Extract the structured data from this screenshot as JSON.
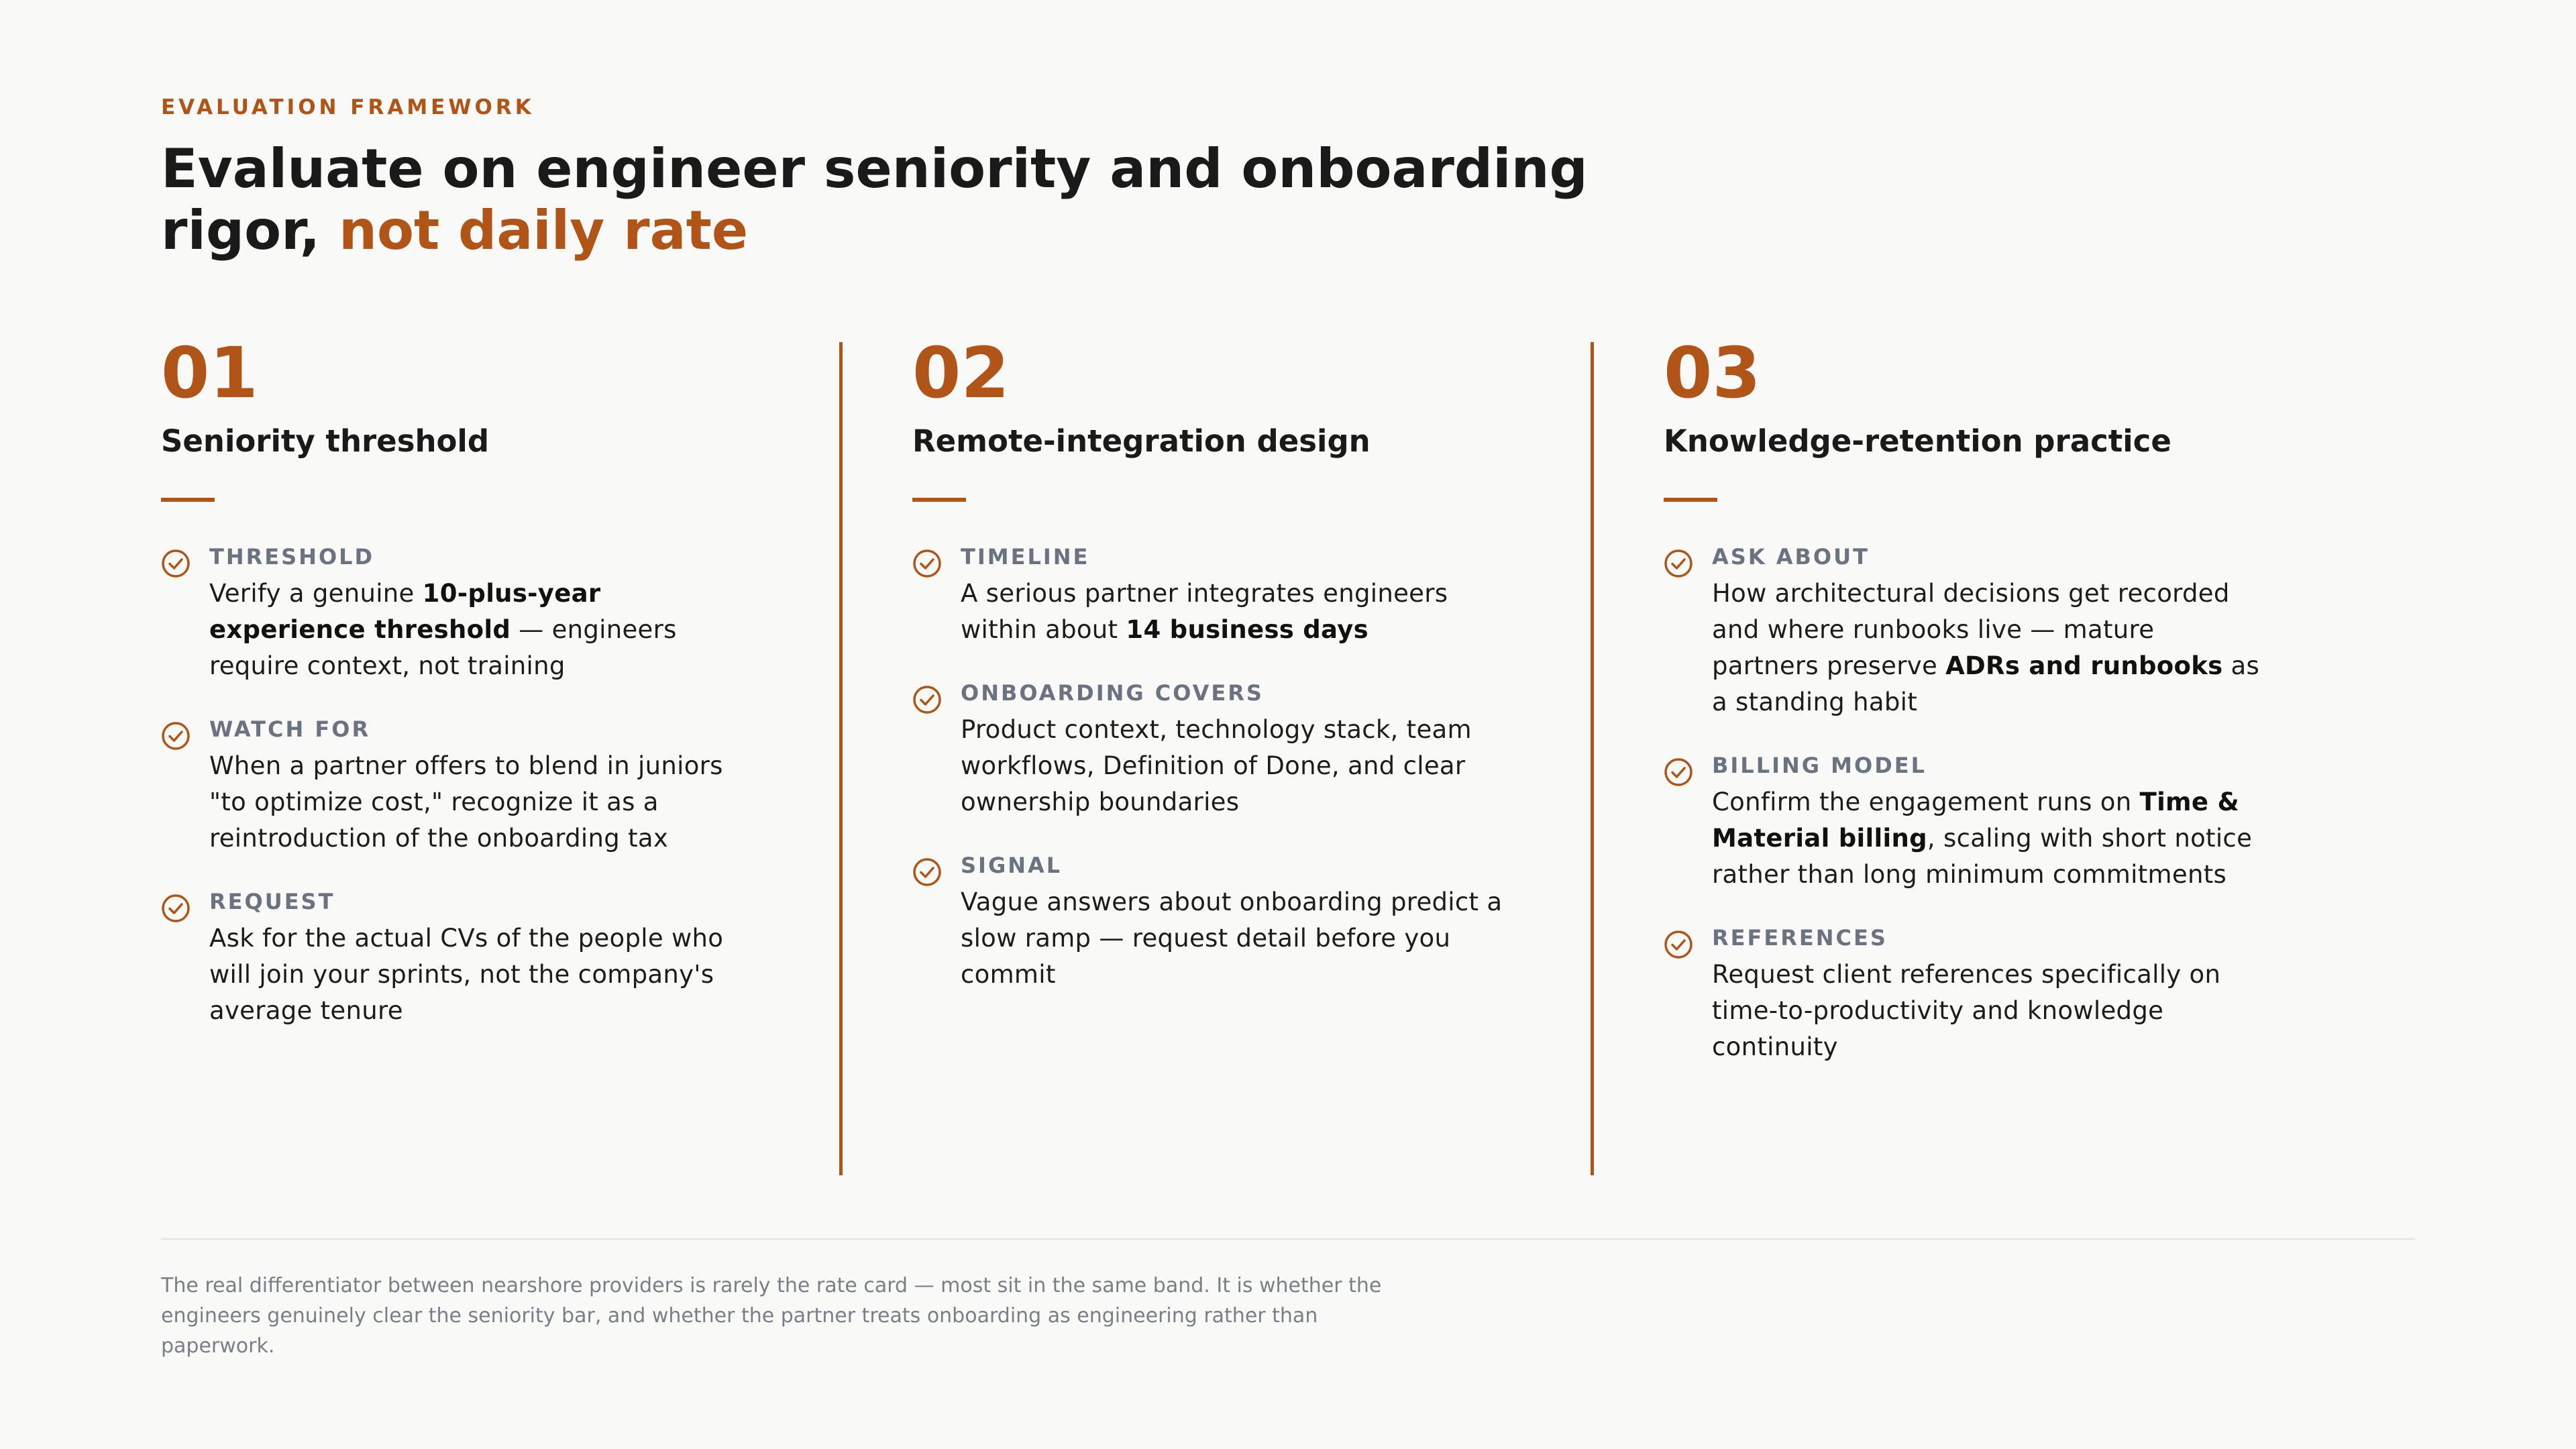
{
  "eyebrow": "EVALUATION FRAMEWORK",
  "title": {
    "main": "Evaluate on engineer seniority and onboarding rigor,",
    "accent": "not daily rate"
  },
  "accent_color": "#b05418",
  "check_icon": "check-circle-icon",
  "columns": [
    {
      "number": "01",
      "title": "Seniority threshold",
      "items": [
        {
          "label": "THRESHOLD",
          "parts": [
            {
              "t": "Verify a genuine "
            },
            {
              "t": "10-plus-year experience threshold",
              "b": true
            },
            {
              "t": " — engineers require context, not training"
            }
          ]
        },
        {
          "label": "WATCH FOR",
          "parts": [
            {
              "t": "When a partner offers to blend in juniors \"to optimize cost,\" recognize it as a reintroduction of the onboarding tax"
            }
          ]
        },
        {
          "label": "REQUEST",
          "parts": [
            {
              "t": "Ask for the actual CVs of the people who will join your sprints, not the company's average tenure"
            }
          ]
        }
      ]
    },
    {
      "number": "02",
      "title": "Remote-integration design",
      "items": [
        {
          "label": "TIMELINE",
          "parts": [
            {
              "t": "A serious partner integrates engineers within about "
            },
            {
              "t": "14 business days",
              "b": true
            }
          ]
        },
        {
          "label": "ONBOARDING COVERS",
          "parts": [
            {
              "t": "Product context, technology stack, team workflows, Definition of Done, and clear ownership boundaries"
            }
          ]
        },
        {
          "label": "SIGNAL",
          "parts": [
            {
              "t": "Vague answers about onboarding predict a slow ramp — request detail before you commit"
            }
          ]
        }
      ]
    },
    {
      "number": "03",
      "title": "Knowledge-retention practice",
      "items": [
        {
          "label": "ASK ABOUT",
          "parts": [
            {
              "t": "How architectural decisions get recorded and where runbooks live — mature partners preserve "
            },
            {
              "t": "ADRs and runbooks",
              "b": true
            },
            {
              "t": " as a standing habit"
            }
          ]
        },
        {
          "label": "BILLING MODEL",
          "parts": [
            {
              "t": "Confirm the engagement runs on "
            },
            {
              "t": "Time & Material billing",
              "b": true
            },
            {
              "t": ", scaling with short notice rather than long minimum commitments"
            }
          ]
        },
        {
          "label": "REFERENCES",
          "parts": [
            {
              "t": "Request client references specifically on time-to-productivity and knowledge continuity"
            }
          ]
        }
      ]
    }
  ],
  "footer": "The real differentiator between nearshore providers is rarely the rate card — most sit in the same band. It is whether the engineers genuinely clear the seniority bar, and whether the partner treats onboarding as engineering rather than paperwork."
}
